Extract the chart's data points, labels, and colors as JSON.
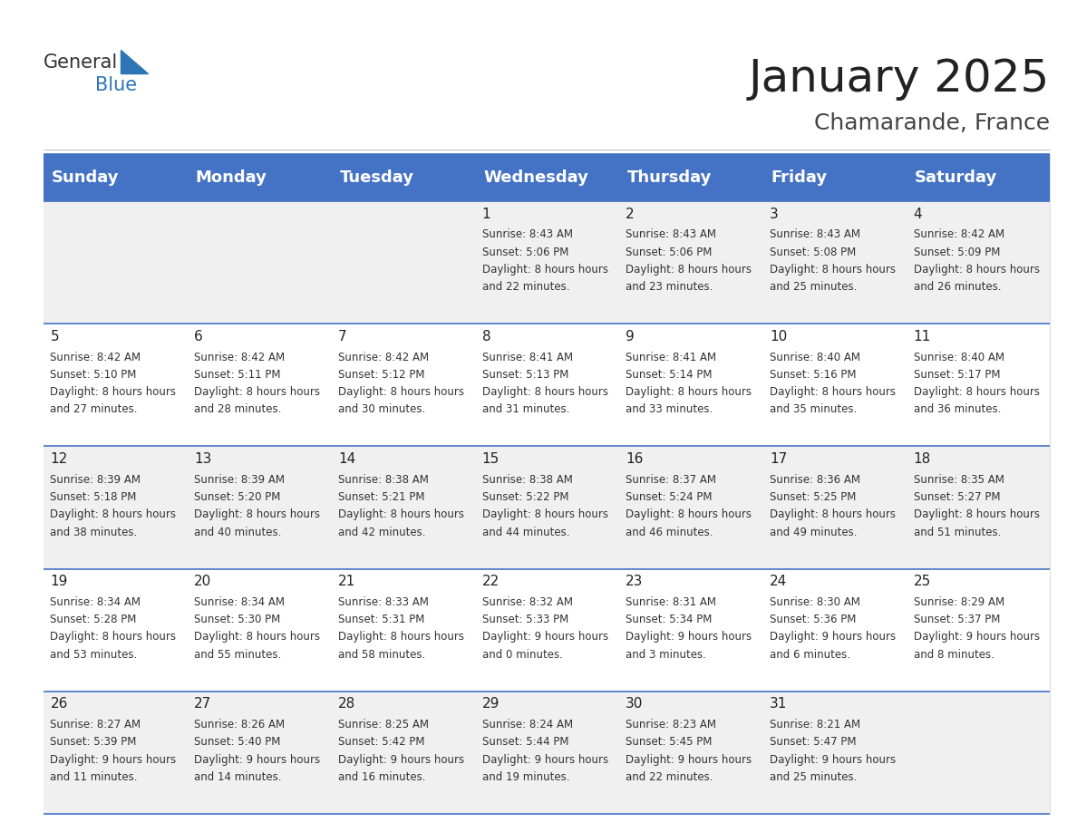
{
  "title": "January 2025",
  "subtitle": "Chamarande, France",
  "header_color": "#4472C4",
  "header_text_color": "#FFFFFF",
  "cell_bg_even": "#F0F0F0",
  "cell_bg_odd": "#FFFFFF",
  "day_headers": [
    "Sunday",
    "Monday",
    "Tuesday",
    "Wednesday",
    "Thursday",
    "Friday",
    "Saturday"
  ],
  "title_fontsize": 36,
  "subtitle_fontsize": 18,
  "header_fontsize": 13,
  "cell_fontsize": 8.5,
  "day_number_fontsize": 11,
  "logo_general_color": "#333333",
  "logo_blue_color": "#2E75B6",
  "header_color_border": "#4472C4",
  "divider_color": "#4472C4",
  "weeks": [
    [
      {
        "day": "",
        "sunrise": "",
        "sunset": "",
        "daylight": ""
      },
      {
        "day": "",
        "sunrise": "",
        "sunset": "",
        "daylight": ""
      },
      {
        "day": "",
        "sunrise": "",
        "sunset": "",
        "daylight": ""
      },
      {
        "day": "1",
        "sunrise": "8:43 AM",
        "sunset": "5:06 PM",
        "daylight": "8 hours and 22 minutes."
      },
      {
        "day": "2",
        "sunrise": "8:43 AM",
        "sunset": "5:06 PM",
        "daylight": "8 hours and 23 minutes."
      },
      {
        "day": "3",
        "sunrise": "8:43 AM",
        "sunset": "5:08 PM",
        "daylight": "8 hours and 25 minutes."
      },
      {
        "day": "4",
        "sunrise": "8:42 AM",
        "sunset": "5:09 PM",
        "daylight": "8 hours and 26 minutes."
      }
    ],
    [
      {
        "day": "5",
        "sunrise": "8:42 AM",
        "sunset": "5:10 PM",
        "daylight": "8 hours and 27 minutes."
      },
      {
        "day": "6",
        "sunrise": "8:42 AM",
        "sunset": "5:11 PM",
        "daylight": "8 hours and 28 minutes."
      },
      {
        "day": "7",
        "sunrise": "8:42 AM",
        "sunset": "5:12 PM",
        "daylight": "8 hours and 30 minutes."
      },
      {
        "day": "8",
        "sunrise": "8:41 AM",
        "sunset": "5:13 PM",
        "daylight": "8 hours and 31 minutes."
      },
      {
        "day": "9",
        "sunrise": "8:41 AM",
        "sunset": "5:14 PM",
        "daylight": "8 hours and 33 minutes."
      },
      {
        "day": "10",
        "sunrise": "8:40 AM",
        "sunset": "5:16 PM",
        "daylight": "8 hours and 35 minutes."
      },
      {
        "day": "11",
        "sunrise": "8:40 AM",
        "sunset": "5:17 PM",
        "daylight": "8 hours and 36 minutes."
      }
    ],
    [
      {
        "day": "12",
        "sunrise": "8:39 AM",
        "sunset": "5:18 PM",
        "daylight": "8 hours and 38 minutes."
      },
      {
        "day": "13",
        "sunrise": "8:39 AM",
        "sunset": "5:20 PM",
        "daylight": "8 hours and 40 minutes."
      },
      {
        "day": "14",
        "sunrise": "8:38 AM",
        "sunset": "5:21 PM",
        "daylight": "8 hours and 42 minutes."
      },
      {
        "day": "15",
        "sunrise": "8:38 AM",
        "sunset": "5:22 PM",
        "daylight": "8 hours and 44 minutes."
      },
      {
        "day": "16",
        "sunrise": "8:37 AM",
        "sunset": "5:24 PM",
        "daylight": "8 hours and 46 minutes."
      },
      {
        "day": "17",
        "sunrise": "8:36 AM",
        "sunset": "5:25 PM",
        "daylight": "8 hours and 49 minutes."
      },
      {
        "day": "18",
        "sunrise": "8:35 AM",
        "sunset": "5:27 PM",
        "daylight": "8 hours and 51 minutes."
      }
    ],
    [
      {
        "day": "19",
        "sunrise": "8:34 AM",
        "sunset": "5:28 PM",
        "daylight": "8 hours and 53 minutes."
      },
      {
        "day": "20",
        "sunrise": "8:34 AM",
        "sunset": "5:30 PM",
        "daylight": "8 hours and 55 minutes."
      },
      {
        "day": "21",
        "sunrise": "8:33 AM",
        "sunset": "5:31 PM",
        "daylight": "8 hours and 58 minutes."
      },
      {
        "day": "22",
        "sunrise": "8:32 AM",
        "sunset": "5:33 PM",
        "daylight": "9 hours and 0 minutes."
      },
      {
        "day": "23",
        "sunrise": "8:31 AM",
        "sunset": "5:34 PM",
        "daylight": "9 hours and 3 minutes."
      },
      {
        "day": "24",
        "sunrise": "8:30 AM",
        "sunset": "5:36 PM",
        "daylight": "9 hours and 6 minutes."
      },
      {
        "day": "25",
        "sunrise": "8:29 AM",
        "sunset": "5:37 PM",
        "daylight": "9 hours and 8 minutes."
      }
    ],
    [
      {
        "day": "26",
        "sunrise": "8:27 AM",
        "sunset": "5:39 PM",
        "daylight": "9 hours and 11 minutes."
      },
      {
        "day": "27",
        "sunrise": "8:26 AM",
        "sunset": "5:40 PM",
        "daylight": "9 hours and 14 minutes."
      },
      {
        "day": "28",
        "sunrise": "8:25 AM",
        "sunset": "5:42 PM",
        "daylight": "9 hours and 16 minutes."
      },
      {
        "day": "29",
        "sunrise": "8:24 AM",
        "sunset": "5:44 PM",
        "daylight": "9 hours and 19 minutes."
      },
      {
        "day": "30",
        "sunrise": "8:23 AM",
        "sunset": "5:45 PM",
        "daylight": "9 hours and 22 minutes."
      },
      {
        "day": "31",
        "sunrise": "8:21 AM",
        "sunset": "5:47 PM",
        "daylight": "9 hours and 25 minutes."
      },
      {
        "day": "",
        "sunrise": "",
        "sunset": "",
        "daylight": ""
      }
    ]
  ]
}
